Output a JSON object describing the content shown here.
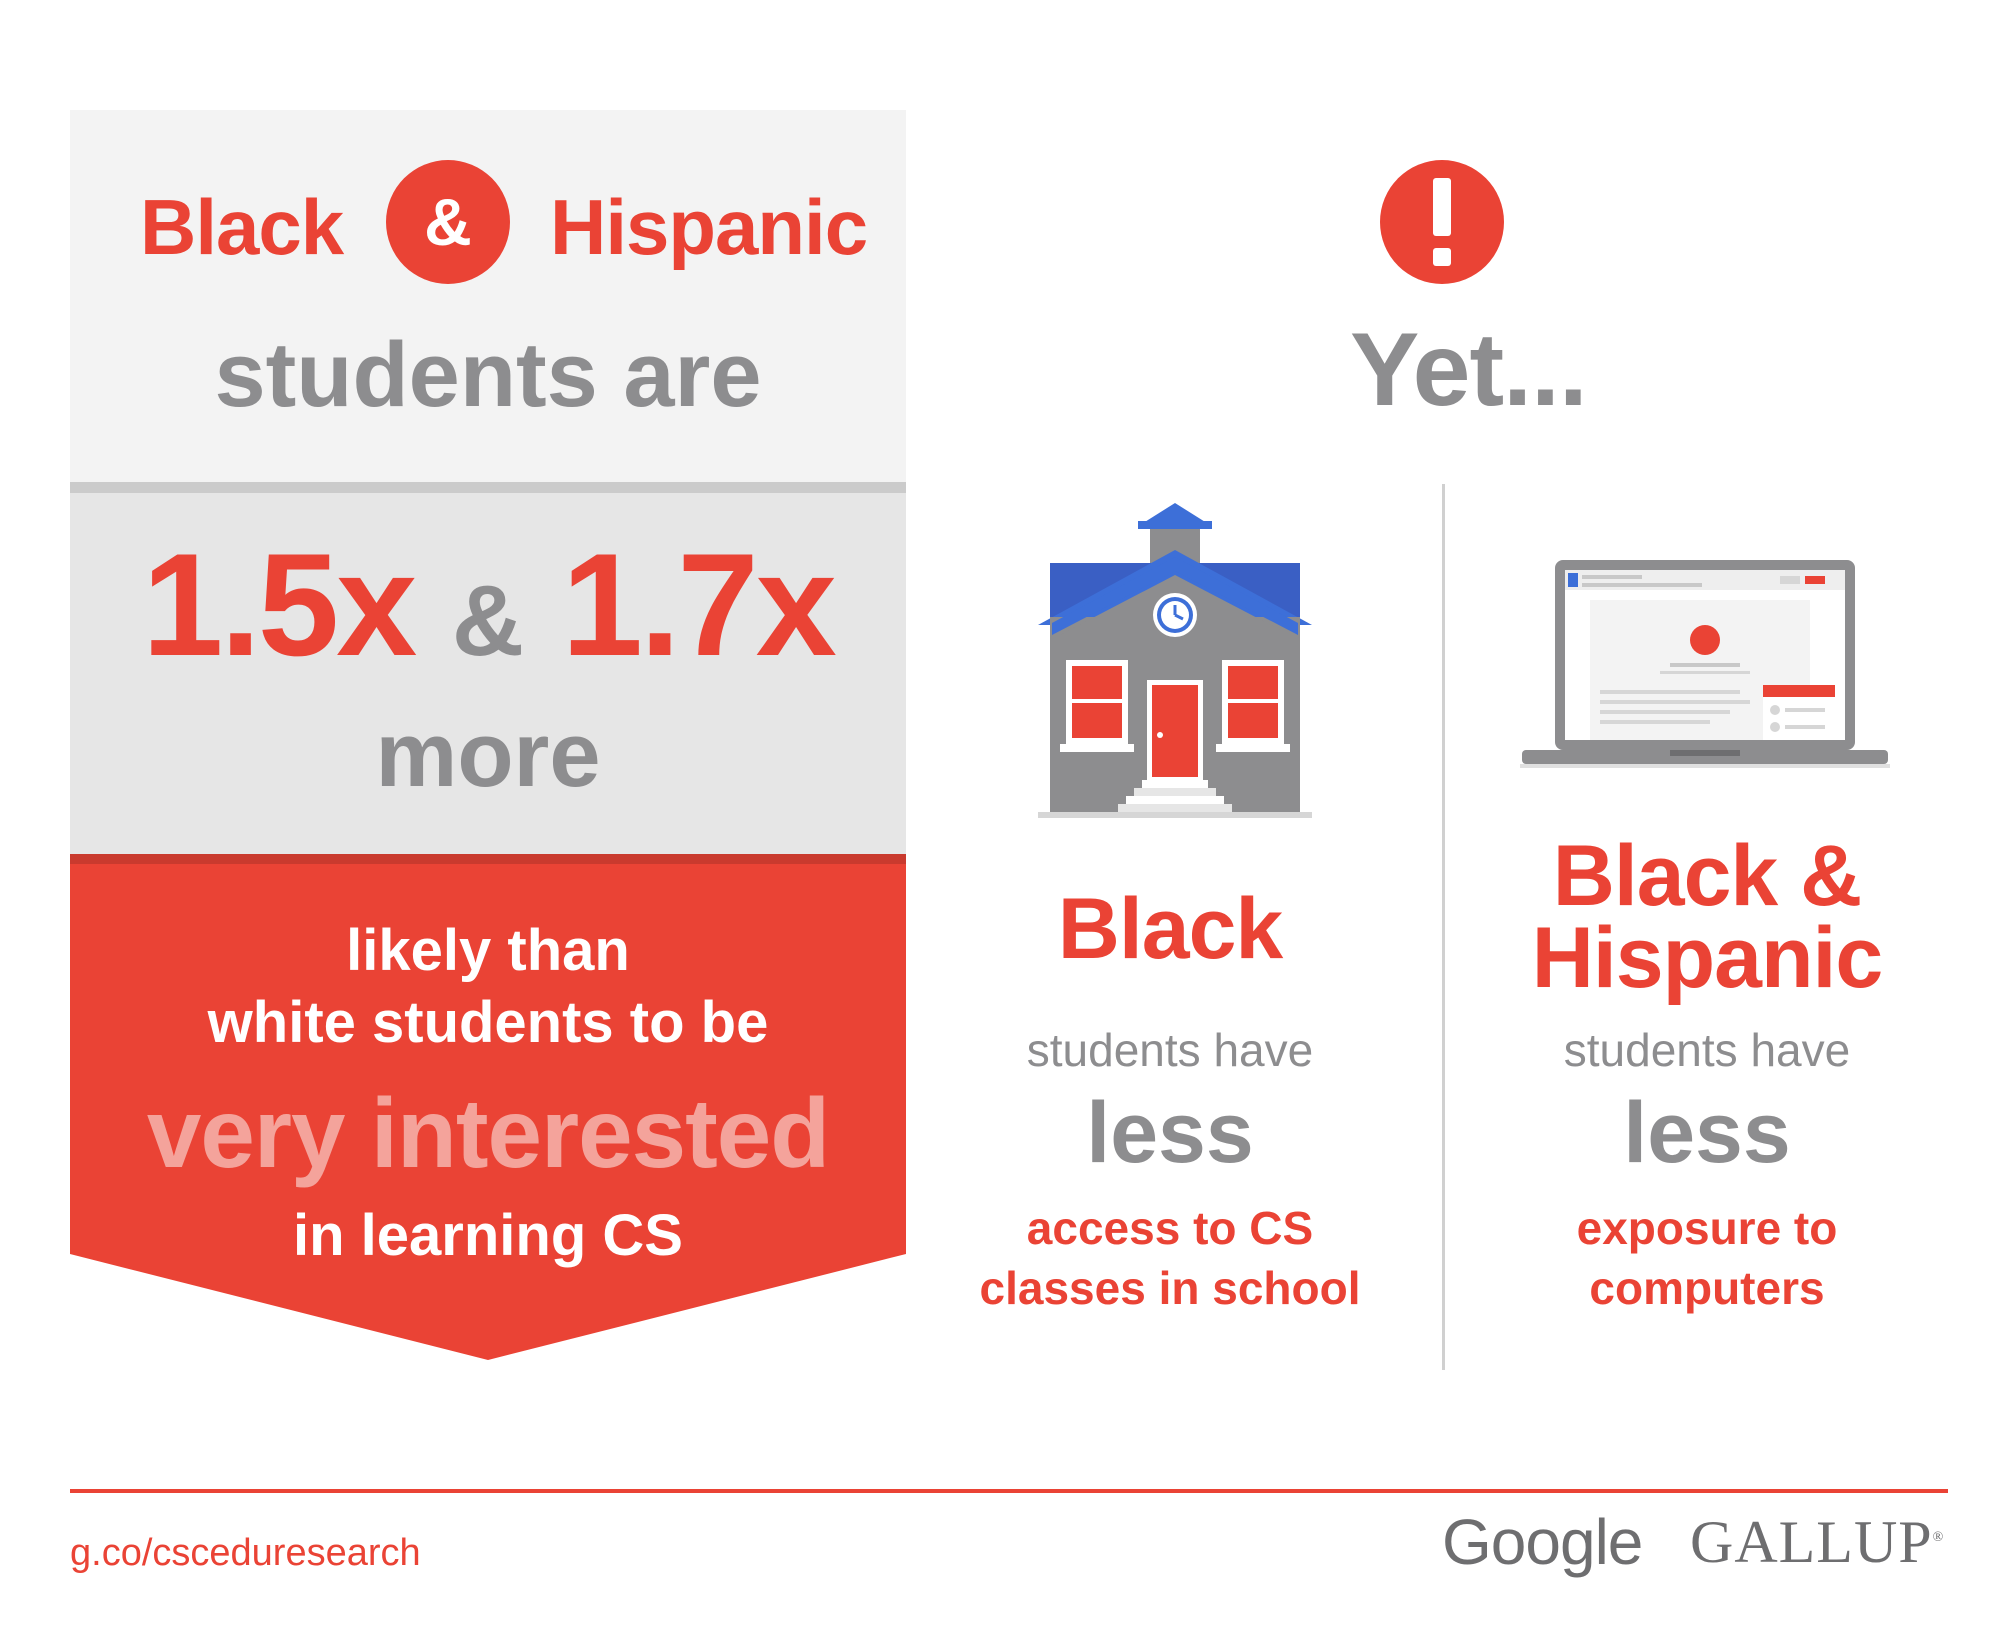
{
  "left": {
    "header_black": "Black",
    "header_amp": "&",
    "header_hispanic": "Hispanic",
    "students_are": "students are",
    "ratio_1": "1.5x",
    "ratio_amp": "&",
    "ratio_2": "1.7x",
    "more": "more",
    "likely_line1": "likely than",
    "likely_line2": "white students to be",
    "very_interested": "very interested",
    "in_learning": "in learning CS"
  },
  "right": {
    "yet": "Yet...",
    "col1": {
      "title": "Black",
      "students_have": "students have",
      "less": "less",
      "detail_line1": "access to CS",
      "detail_line2": "classes in school"
    },
    "col2": {
      "title_line1": "Black &",
      "title_line2": "Hispanic",
      "students_have": "students have",
      "less": "less",
      "detail_line1": "exposure to",
      "detail_line2": "computers"
    }
  },
  "footer": {
    "url": "g.co/csceduresearch",
    "logo_google": "Google",
    "logo_gallup": "GALLUP",
    "logo_gallup_mark": "®"
  },
  "colors": {
    "accent_red": "#ea4335",
    "gray_text": "#8d8d8f",
    "pink_text": "#f4a39b",
    "roof_blue": "#3d6fd8"
  },
  "icons": [
    "exclamation-icon",
    "school-building-icon",
    "laptop-icon"
  ]
}
